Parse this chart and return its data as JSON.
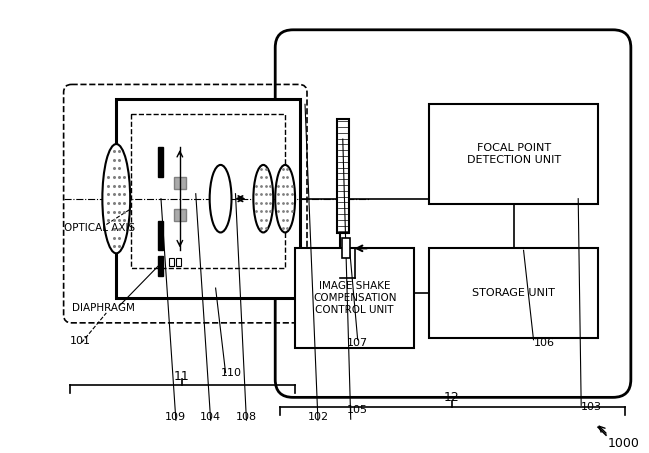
{
  "bg_color": "#ffffff",
  "line_color": "#000000",
  "label_1000": "1000",
  "label_11": "11",
  "label_12": "12",
  "label_101": "101",
  "label_102": "102",
  "label_103": "103",
  "label_104": "104",
  "label_105": "105",
  "label_106": "106",
  "label_107": "107",
  "label_108": "108",
  "label_109": "109",
  "label_110": "110",
  "text_optical_axis": "OPTICAL AXIS",
  "text_diaphragm": "DIAPHRAGM",
  "text_focal": "FOCAL POINT\nDETECTION UNIT",
  "text_storage": "STORAGE UNIT",
  "text_image_shake": "IMAGE SHAKE\nCOMPENSATION\nCONTROL UNIT"
}
